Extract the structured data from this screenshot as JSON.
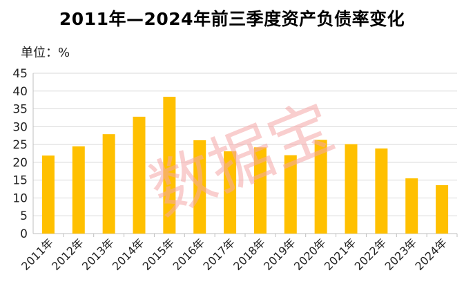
{
  "chart_data": {
    "type": "bar",
    "title": "2011年—2024年前三季度资产负债率变化",
    "unit_label": "单位：%",
    "categories": [
      "2011年",
      "2012年",
      "2013年",
      "2014年",
      "2015年",
      "2016年",
      "2017年",
      "2018年",
      "2019年",
      "2020年",
      "2021年",
      "2022年",
      "2023年",
      "2024年"
    ],
    "series": [
      {
        "values": [
          21.9,
          24.5,
          27.9,
          32.8,
          38.4,
          26.2,
          23.1,
          24.2,
          22.0,
          26.3,
          25.1,
          23.9,
          15.5,
          13.6
        ]
      }
    ],
    "yticks": [
      "0",
      "5",
      "10",
      "15",
      "20",
      "25",
      "30",
      "35",
      "40",
      "45"
    ],
    "ylim": [
      0,
      45
    ],
    "grid": true,
    "legend": "none",
    "bar_color": "#FFC000",
    "watermark": "数据宝",
    "watermark_color": "#F4A6A6"
  }
}
